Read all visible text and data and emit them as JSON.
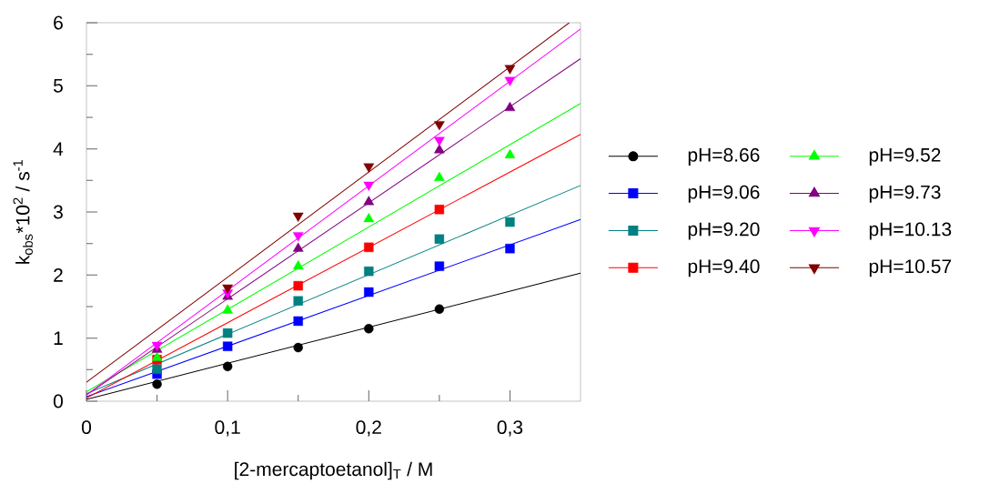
{
  "chart_data": {
    "type": "scatter",
    "xlabel": "[2-mercaptoetanol]$_{T}$ / M",
    "ylabel": "k$_{obs}$*10$^{2}$ / s$^{-1}$",
    "xlim": [
      0,
      0.35
    ],
    "ylim": [
      0,
      6
    ],
    "xticks": [
      0,
      {
        "value": 0.1,
        "label": "0,1"
      },
      {
        "value": 0.2,
        "label": "0,2"
      },
      {
        "value": 0.3,
        "label": "0,3"
      }
    ],
    "yticks": [
      0,
      1,
      2,
      3,
      4,
      5,
      6
    ],
    "legend": "right",
    "grid": false,
    "series": [
      {
        "name": "pH=8.66",
        "color": "#000000",
        "marker": "circle",
        "x": [
          0.05,
          0.1,
          0.15,
          0.2,
          0.25
        ],
        "values": [
          0.27,
          0.55,
          0.85,
          1.15,
          1.46
        ]
      },
      {
        "name": "pH=9.06",
        "color": "#0000ff",
        "marker": "square",
        "x": [
          0.05,
          0.1,
          0.15,
          0.2,
          0.25,
          0.3
        ],
        "values": [
          0.43,
          0.87,
          1.27,
          1.73,
          2.14,
          2.42
        ]
      },
      {
        "name": "pH=9.20",
        "color": "#008080",
        "marker": "square",
        "x": [
          0.05,
          0.1,
          0.15,
          0.2,
          0.25,
          0.3
        ],
        "values": [
          0.51,
          1.08,
          1.59,
          2.06,
          2.57,
          2.84
        ]
      },
      {
        "name": "pH=9.40",
        "color": "#ff0000",
        "marker": "square",
        "x": [
          0.05,
          0.15,
          0.2,
          0.25
        ],
        "values": [
          0.66,
          1.83,
          2.44,
          3.04
        ]
      },
      {
        "name": "pH=9.52",
        "color": "#00ff00",
        "marker": "triangle",
        "x": [
          0.05,
          0.1,
          0.15,
          0.2,
          0.25,
          0.3
        ],
        "values": [
          0.69,
          1.44,
          2.14,
          2.89,
          3.54,
          3.9
        ]
      },
      {
        "name": "pH=9.73",
        "color": "#800080",
        "marker": "triangle",
        "x": [
          0.05,
          0.1,
          0.15,
          0.2,
          0.25,
          0.3
        ],
        "values": [
          0.82,
          1.66,
          2.42,
          3.16,
          3.98,
          4.65
        ]
      },
      {
        "name": "pH=10.13",
        "color": "#ff00ff",
        "marker": "triangle_down",
        "x": [
          0.05,
          0.1,
          0.15,
          0.2,
          0.25,
          0.3
        ],
        "values": [
          0.89,
          1.72,
          2.63,
          3.43,
          4.14,
          5.09
        ]
      },
      {
        "name": "pH=10.57",
        "color": "#800000",
        "marker": "triangle_down",
        "x": [
          0.1,
          0.15,
          0.2,
          0.25,
          0.3
        ],
        "values": [
          1.8,
          2.94,
          3.72,
          4.39,
          5.28
        ]
      },
      {
        "type": "line",
        "color": "#000000",
        "x": [
          0,
          0.35
        ],
        "values": [
          0.03,
          2.03
        ]
      },
      {
        "type": "line",
        "color": "#0000ff",
        "x": [
          0,
          0.35
        ],
        "values": [
          0.07,
          2.88
        ]
      },
      {
        "type": "line",
        "color": "#008080",
        "x": [
          0,
          0.35
        ],
        "values": [
          0.12,
          3.42
        ]
      },
      {
        "type": "line",
        "color": "#ff0000",
        "x": [
          0,
          0.35
        ],
        "values": [
          0.05,
          4.23
        ]
      },
      {
        "type": "line",
        "color": "#00ff00",
        "x": [
          0,
          0.35
        ],
        "values": [
          0.15,
          4.72
        ]
      },
      {
        "type": "line",
        "color": "#800080",
        "x": [
          0,
          0.35
        ],
        "values": [
          0.1,
          5.43
        ]
      },
      {
        "type": "line",
        "color": "#ff00ff",
        "x": [
          0,
          0.35
        ],
        "values": [
          0.1,
          5.9
        ]
      },
      {
        "type": "line",
        "color": "#800000",
        "x": [
          0,
          0.342
        ],
        "values": [
          0.3,
          6
        ]
      }
    ]
  }
}
